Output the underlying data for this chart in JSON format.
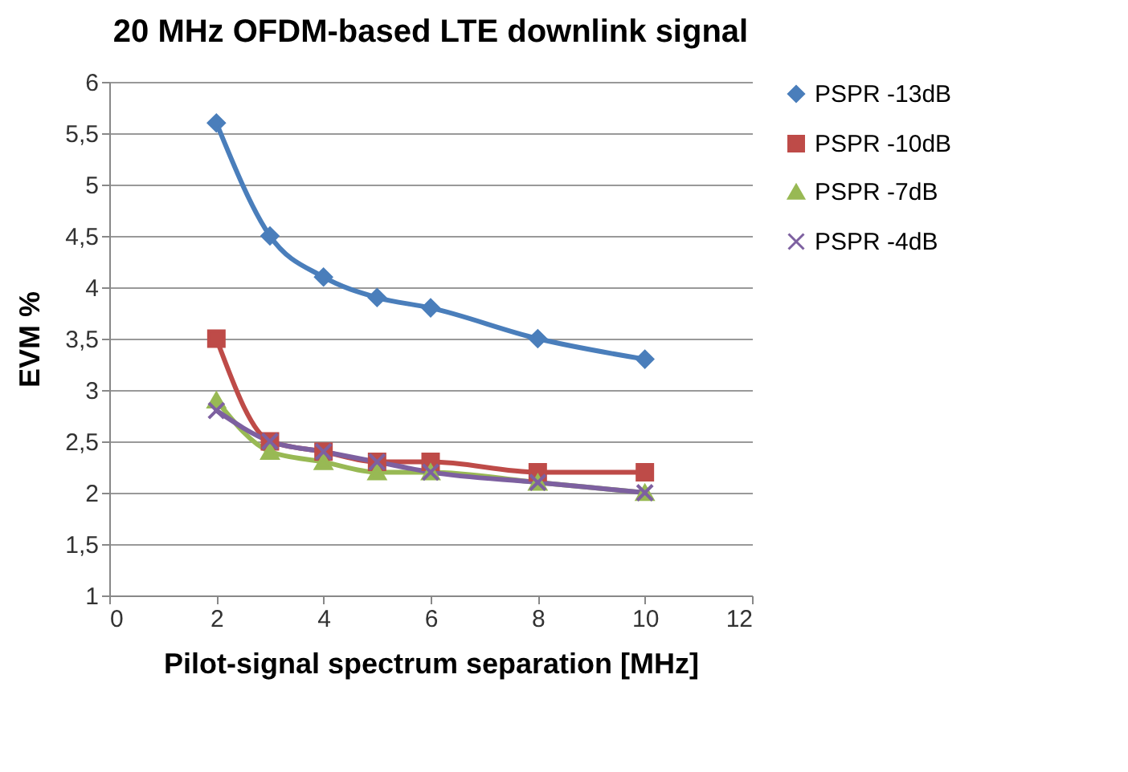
{
  "chart_data": {
    "type": "line",
    "title": "20 MHz OFDM-based LTE downlink signal",
    "xlabel": "Pilot-signal spectrum separation [MHz]",
    "ylabel": "EVM %",
    "x": [
      2,
      3,
      4,
      5,
      6,
      8,
      10
    ],
    "series": [
      {
        "name": "PSPR -13dB",
        "color": "#4a7ebb",
        "marker": "diamond",
        "values": [
          5.6,
          4.5,
          4.1,
          3.9,
          3.8,
          3.5,
          3.3
        ]
      },
      {
        "name": "PSPR -10dB",
        "color": "#be4b48",
        "marker": "square",
        "values": [
          3.5,
          2.5,
          2.4,
          2.3,
          2.3,
          2.2,
          2.2
        ]
      },
      {
        "name": "PSPR -7dB",
        "color": "#98b954",
        "marker": "triangle",
        "values": [
          2.9,
          2.4,
          2.3,
          2.2,
          2.2,
          2.1,
          2.0
        ]
      },
      {
        "name": "PSPR -4dB",
        "color": "#7d60a0",
        "marker": "cross",
        "values": [
          2.8,
          2.5,
          2.4,
          2.3,
          2.2,
          2.1,
          2.0
        ]
      }
    ],
    "xlim": [
      0,
      12
    ],
    "xticks": [
      0,
      2,
      4,
      6,
      8,
      10,
      12
    ],
    "ylim": [
      1,
      6
    ],
    "yticks": [
      1,
      {
        "value": 1.5,
        "label": "1,5"
      },
      2,
      {
        "value": 2.5,
        "label": "2,5"
      },
      3,
      {
        "value": 3.5,
        "label": "3,5"
      },
      4,
      {
        "value": 4.5,
        "label": "4,5"
      },
      5,
      {
        "value": 5.5,
        "label": "5,5"
      },
      6
    ],
    "grid": "y",
    "legend": "right",
    "line_style": "solid"
  }
}
